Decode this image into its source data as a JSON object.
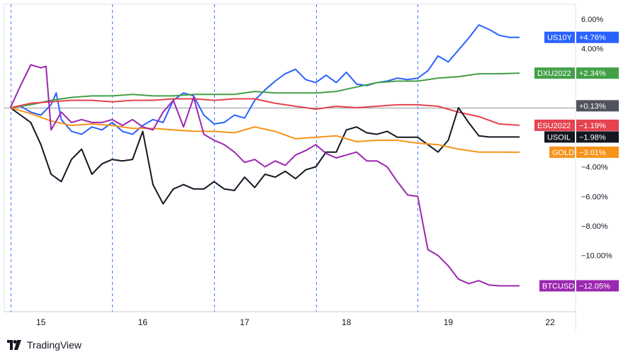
{
  "footer": {
    "brand": "TradingView",
    "logo_icon": "tradingview-logo-icon"
  },
  "chart_data": {
    "type": "line",
    "x_ticks": [
      {
        "label": "15",
        "x": 0.3
      },
      {
        "label": "16",
        "x": 1.3
      },
      {
        "label": "17",
        "x": 2.3
      },
      {
        "label": "18",
        "x": 3.3
      },
      {
        "label": "19",
        "x": 4.3
      },
      {
        "label": "22",
        "x": 5.3
      }
    ],
    "session_breaks": [
      0,
      1,
      2,
      3,
      4
    ],
    "xlim": [
      -0.06,
      5.55
    ],
    "ylim": [
      -13.8,
      7.0
    ],
    "y_ticks": [
      {
        "label": "6.00%",
        "value": 6
      },
      {
        "label": "4.00%",
        "value": 4
      },
      {
        "label": "−4.00%",
        "value": -4
      },
      {
        "label": "−6.00%",
        "value": -6
      },
      {
        "label": "−8.00%",
        "value": -8
      },
      {
        "label": "−10.00%",
        "value": -10
      }
    ],
    "baseline": 0,
    "series": [
      {
        "name": "US10Y",
        "label": "+4.76%",
        "color": "#2962ff",
        "x": [
          0,
          0.1,
          0.2,
          0.3,
          0.4,
          0.45,
          0.5,
          0.6,
          0.7,
          0.8,
          0.9,
          1.0,
          1.1,
          1.2,
          1.3,
          1.4,
          1.5,
          1.6,
          1.7,
          1.8,
          1.9,
          2.0,
          2.1,
          2.2,
          2.3,
          2.4,
          2.5,
          2.6,
          2.7,
          2.8,
          2.9,
          3.0,
          3.1,
          3.2,
          3.3,
          3.4,
          3.5,
          3.6,
          3.7,
          3.8,
          3.9,
          4.0,
          4.1,
          4.2,
          4.3,
          4.4,
          4.5,
          4.6,
          4.7,
          4.8,
          4.9,
          5.0
        ],
        "y": [
          0.0,
          0.1,
          -0.3,
          -0.5,
          0.2,
          1.0,
          -0.8,
          -1.6,
          -1.8,
          -1.3,
          -1.5,
          -1.0,
          -1.6,
          -1.8,
          -1.2,
          -0.8,
          -1.0,
          0.5,
          1.0,
          0.8,
          -0.5,
          -1.1,
          -1.0,
          -0.5,
          -0.7,
          0.5,
          1.2,
          1.8,
          2.3,
          2.6,
          1.9,
          1.7,
          2.2,
          1.7,
          2.4,
          1.6,
          1.5,
          1.7,
          1.8,
          2.0,
          1.9,
          2.0,
          2.5,
          3.5,
          3.1,
          3.9,
          4.7,
          5.6,
          5.3,
          4.9,
          4.76,
          4.76
        ]
      },
      {
        "name": "DXU2022",
        "label": "+2.34%",
        "color": "#43a047",
        "x": [
          0,
          0.2,
          0.4,
          0.6,
          0.8,
          1.0,
          1.2,
          1.4,
          1.6,
          1.8,
          2.0,
          2.2,
          2.4,
          2.6,
          2.8,
          3.0,
          3.2,
          3.4,
          3.6,
          3.8,
          4.0,
          4.2,
          4.4,
          4.6,
          4.8,
          5.0
        ],
        "y": [
          0.0,
          0.2,
          0.5,
          0.7,
          0.8,
          0.8,
          0.9,
          0.8,
          0.8,
          0.9,
          0.9,
          0.9,
          1.1,
          1.0,
          1.0,
          1.0,
          1.1,
          1.4,
          1.7,
          1.8,
          1.8,
          2.0,
          2.1,
          2.3,
          2.3,
          2.34
        ]
      },
      {
        "name": "ESU2022",
        "label": "−1.19%",
        "color": "#e5434f",
        "x": [
          0,
          0.2,
          0.4,
          0.6,
          0.8,
          1.0,
          1.2,
          1.4,
          1.6,
          1.8,
          2.0,
          2.2,
          2.4,
          2.6,
          2.8,
          3.0,
          3.2,
          3.4,
          3.6,
          3.8,
          4.0,
          4.2,
          4.4,
          4.6,
          4.8,
          5.0
        ],
        "y": [
          0.0,
          0.3,
          0.4,
          0.5,
          0.5,
          0.4,
          0.5,
          0.5,
          0.6,
          0.6,
          0.5,
          0.6,
          0.6,
          0.3,
          0.1,
          -0.1,
          0.1,
          0.0,
          0.1,
          0.2,
          0.2,
          0.1,
          -0.3,
          -0.6,
          -1.1,
          -1.19
        ]
      },
      {
        "name": "USOIL",
        "label": "−1.98%",
        "color": "#131722",
        "x": [
          0,
          0.1,
          0.2,
          0.3,
          0.4,
          0.5,
          0.6,
          0.7,
          0.8,
          0.9,
          1.0,
          1.1,
          1.2,
          1.3,
          1.4,
          1.5,
          1.6,
          1.7,
          1.8,
          1.9,
          2.0,
          2.1,
          2.2,
          2.3,
          2.4,
          2.5,
          2.6,
          2.7,
          2.8,
          2.9,
          3.0,
          3.1,
          3.2,
          3.3,
          3.4,
          3.5,
          3.6,
          3.7,
          3.8,
          3.9,
          4.0,
          4.1,
          4.2,
          4.3,
          4.4,
          4.5,
          4.6,
          4.7,
          4.8,
          4.9,
          5.0
        ],
        "y": [
          0.0,
          -0.5,
          -1.0,
          -2.5,
          -4.5,
          -5.0,
          -3.5,
          -2.8,
          -4.5,
          -3.8,
          -3.5,
          -3.6,
          -3.5,
          -1.6,
          -5.2,
          -6.5,
          -5.5,
          -5.2,
          -5.5,
          -5.5,
          -5.0,
          -5.5,
          -5.6,
          -4.7,
          -5.4,
          -4.5,
          -4.7,
          -4.3,
          -4.8,
          -4.2,
          -4.0,
          -3.0,
          -3.0,
          -1.5,
          -1.3,
          -1.7,
          -1.8,
          -1.6,
          -2.0,
          -2.0,
          -2.0,
          -2.5,
          -3.0,
          -2.2,
          0.0,
          -1.0,
          -1.9,
          -1.98,
          -1.98,
          -1.98,
          -1.98
        ]
      },
      {
        "name": "GOLD",
        "label": "−3.01%",
        "color": "#f7931a",
        "x": [
          0,
          0.2,
          0.4,
          0.6,
          0.8,
          1.0,
          1.2,
          1.4,
          1.6,
          1.8,
          2.0,
          2.2,
          2.4,
          2.6,
          2.8,
          3.0,
          3.2,
          3.4,
          3.6,
          3.8,
          4.0,
          4.2,
          4.4,
          4.6,
          4.8,
          5.0
        ],
        "y": [
          0.0,
          -0.4,
          -0.9,
          -1.2,
          -1.1,
          -1.2,
          -1.4,
          -1.4,
          -1.5,
          -1.6,
          -1.6,
          -1.7,
          -1.3,
          -1.6,
          -2.1,
          -2.0,
          -1.9,
          -2.3,
          -2.2,
          -2.2,
          -2.4,
          -2.5,
          -2.8,
          -3.0,
          -3.0,
          -3.01
        ]
      },
      {
        "name": "BTCUSD",
        "label": "−12.05%",
        "color": "#9c27b0",
        "x": [
          0,
          0.1,
          0.2,
          0.3,
          0.35,
          0.4,
          0.5,
          0.6,
          0.7,
          0.8,
          0.9,
          1.0,
          1.1,
          1.2,
          1.3,
          1.4,
          1.5,
          1.6,
          1.7,
          1.8,
          1.9,
          2.0,
          2.1,
          2.2,
          2.3,
          2.4,
          2.5,
          2.6,
          2.7,
          2.8,
          2.9,
          3.0,
          3.1,
          3.2,
          3.3,
          3.4,
          3.5,
          3.6,
          3.7,
          3.8,
          3.9,
          4.0,
          4.1,
          4.2,
          4.3,
          4.4,
          4.5,
          4.6,
          4.7,
          4.8,
          4.9,
          5.0
        ],
        "y": [
          0.0,
          1.5,
          2.9,
          2.7,
          2.8,
          -1.5,
          -0.3,
          -1.0,
          -0.8,
          -1.0,
          -1.0,
          -0.8,
          -1.2,
          -0.8,
          -1.3,
          -1.5,
          -0.3,
          0.5,
          -1.3,
          0.7,
          -1.8,
          -2.2,
          -2.5,
          -3.0,
          -3.7,
          -3.5,
          -4.0,
          -3.6,
          -3.9,
          -3.2,
          -2.9,
          -2.5,
          -3.1,
          -3.4,
          -3.2,
          -3.0,
          -3.6,
          -3.6,
          -4.0,
          -5.0,
          -5.9,
          -6.0,
          -9.6,
          -10.0,
          -10.7,
          -11.6,
          -11.9,
          -11.7,
          -12.0,
          -12.05,
          -12.05,
          -12.05
        ]
      }
    ],
    "last_price_label": {
      "label": "+0.13%",
      "value": 0.13,
      "color": "#50535e"
    }
  }
}
